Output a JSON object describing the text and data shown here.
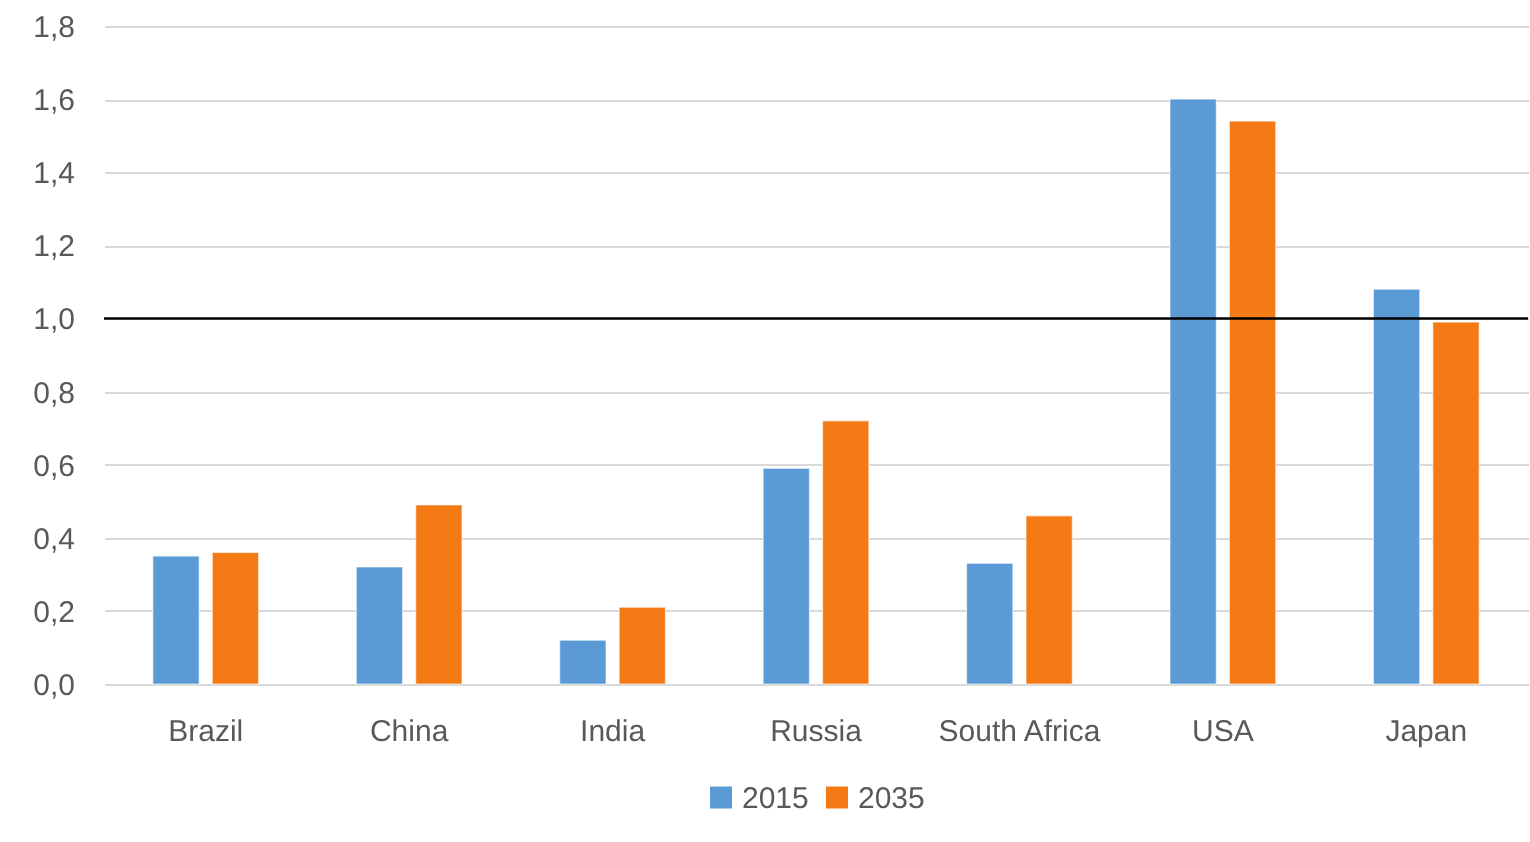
{
  "chart_data": {
    "type": "bar",
    "categories": [
      "Brazil",
      "China",
      "India",
      "Russia",
      "South Africa",
      "USA",
      "Japan"
    ],
    "series": [
      {
        "name": "2015",
        "color": "#5b9bd5",
        "values": [
          0.35,
          0.32,
          0.12,
          0.59,
          0.33,
          1.6,
          1.08
        ]
      },
      {
        "name": "2035",
        "color": "#f47a16",
        "values": [
          0.36,
          0.49,
          0.21,
          0.72,
          0.46,
          1.54,
          0.99
        ]
      }
    ],
    "ylim": [
      0,
      1.8
    ],
    "yticks": [
      {
        "value": 0,
        "label": "0,0"
      },
      {
        "value": 0.2,
        "label": "0,2"
      },
      {
        "value": 0.4,
        "label": "0,4"
      },
      {
        "value": 0.6,
        "label": "0,6"
      },
      {
        "value": 0.8,
        "label": "0,8"
      },
      {
        "value": 1,
        "label": "1,0"
      },
      {
        "value": 1.2,
        "label": "1,2"
      },
      {
        "value": 1.4,
        "label": "1,4"
      },
      {
        "value": 1.6,
        "label": "1,6"
      },
      {
        "value": 1.8,
        "label": "1,8"
      }
    ],
    "ref_lines": [
      {
        "axis": "y",
        "value": 1,
        "color": "#000000"
      }
    ],
    "grid": "y",
    "legend": "bottom"
  }
}
